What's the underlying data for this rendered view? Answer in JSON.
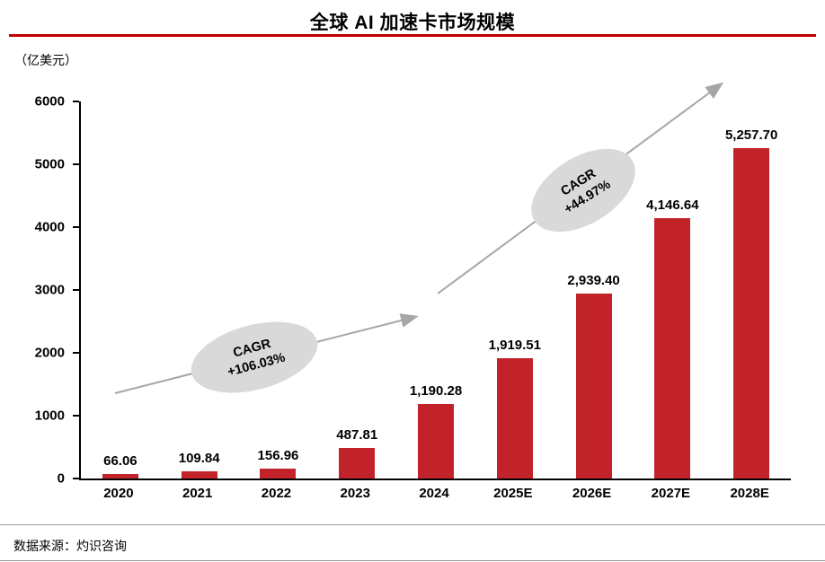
{
  "title": "全球 AI 加速卡市场规模",
  "unit_label": "（亿美元）",
  "source": "数据来源：灼识咨询",
  "colors": {
    "bar": "#C2232A",
    "title_rule": "#C00000",
    "arrow": "#A6A6A6",
    "ellipse": "#D9D9D9"
  },
  "chart_data": {
    "type": "bar",
    "title": "全球 AI 加速卡市场规模",
    "ylabel": "（亿美元）",
    "categories": [
      "2020",
      "2021",
      "2022",
      "2023",
      "2024",
      "2025E",
      "2026E",
      "2027E",
      "2028E"
    ],
    "values": [
      66.06,
      109.84,
      156.96,
      487.81,
      1190.28,
      1919.51,
      2939.4,
      4146.64,
      5257.7
    ],
    "value_labels": [
      "66.06",
      "109.84",
      "156.96",
      "487.81",
      "1,190.28",
      "1,919.51",
      "2,939.40",
      "4,146.64",
      "5,257.70"
    ],
    "ylim": [
      0,
      6000
    ],
    "yticks": [
      0,
      1000,
      2000,
      3000,
      4000,
      5000,
      6000
    ],
    "grid": false,
    "legend": null,
    "annotations": [
      {
        "line1": "CAGR",
        "line2": "+106.03%"
      },
      {
        "line1": "CAGR",
        "line2": "+44.97%"
      }
    ]
  }
}
